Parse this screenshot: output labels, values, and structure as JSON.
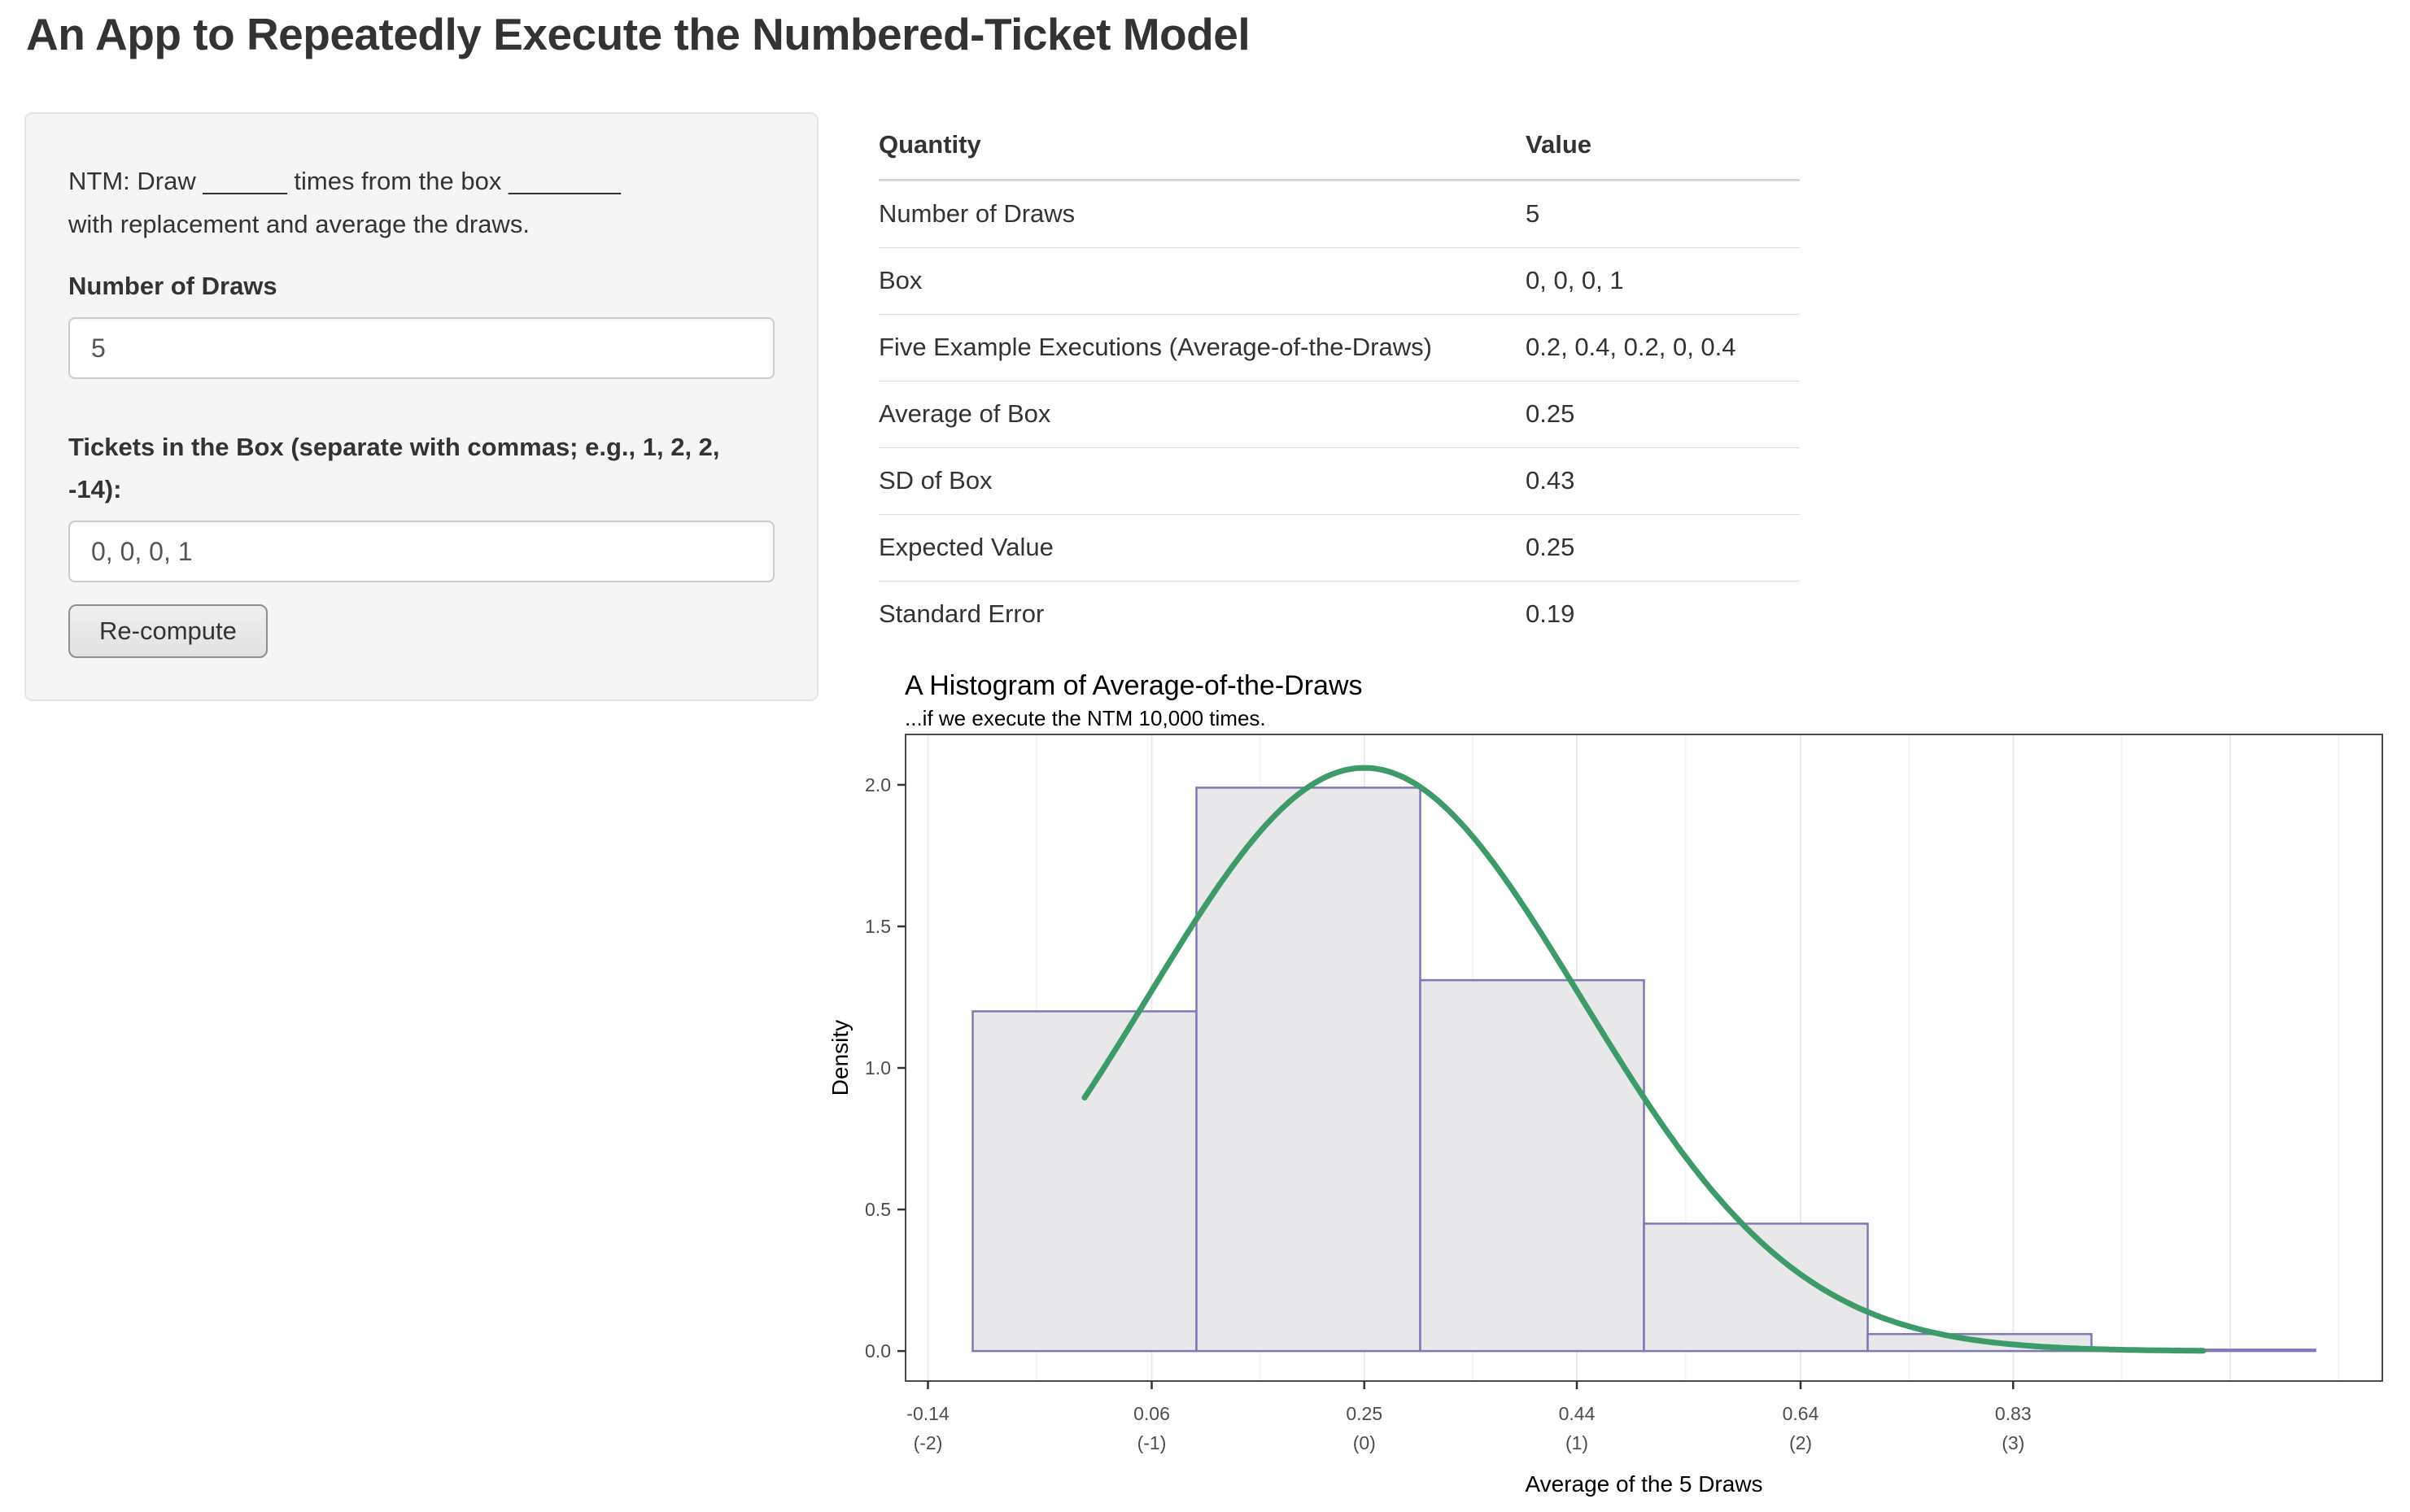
{
  "page": {
    "title": "An App to Repeatedly Execute the Numbered-Ticket Model"
  },
  "sidebar": {
    "ntm_line1": "NTM: Draw ______ times from the box ________",
    "ntm_line2": "with replacement and average the draws.",
    "draws_label": "Number of Draws",
    "draws_value": "5",
    "tickets_label": "Tickets in the Box (separate with commas; e.g., 1, 2, 2, -14):",
    "tickets_value": "0, 0, 0, 1",
    "recompute_label": "Re-compute"
  },
  "summary_table": {
    "headers": [
      "Quantity",
      "Value"
    ],
    "rows": [
      [
        "Number of Draws",
        "5"
      ],
      [
        "Box",
        "0, 0, 0, 1"
      ],
      [
        "Five Example Executions (Average-of-the-Draws)",
        "0.2, 0.4, 0.2, 0, 0.4"
      ],
      [
        "Average of Box",
        "0.25"
      ],
      [
        "SD of Box",
        "0.43"
      ],
      [
        "Expected Value",
        "0.25"
      ],
      [
        "Standard Error",
        "0.19"
      ]
    ]
  },
  "chart_data": {
    "type": "histogram-with-normal-curve",
    "title": "A Histogram of Average-of-the-Draws",
    "subtitle": "...if we execute the NTM 10,000 times.",
    "xlabel": "Average of the 5 Draws",
    "ylabel": "Density",
    "xlim": [
      -0.16,
      1.16
    ],
    "ylim": [
      -0.106,
      2.178
    ],
    "grid": "vertical-only",
    "legend": "none",
    "x_ticks": [
      {
        "value": -0.14,
        "label": "-0.14",
        "sub": "(-2)"
      },
      {
        "value": 0.06,
        "label": "0.06",
        "sub": "(-1)"
      },
      {
        "value": 0.25,
        "label": "0.25",
        "sub": "(0)"
      },
      {
        "value": 0.44,
        "label": "0.44",
        "sub": "(1)"
      },
      {
        "value": 0.64,
        "label": "0.64",
        "sub": "(2)"
      },
      {
        "value": 0.83,
        "label": "0.83",
        "sub": "(3)"
      }
    ],
    "y_ticks": [
      {
        "value": 0,
        "label": "0.0"
      },
      {
        "value": 0.5,
        "label": "0.5"
      },
      {
        "value": 1,
        "label": "1.0"
      },
      {
        "value": 1.5,
        "label": "1.5"
      },
      {
        "value": 2,
        "label": "2.0"
      }
    ],
    "bars": [
      {
        "from": -0.1,
        "to": 0.1,
        "density": 1.2
      },
      {
        "from": 0.1,
        "to": 0.3,
        "density": 1.99
      },
      {
        "from": 0.3,
        "to": 0.5,
        "density": 1.31
      },
      {
        "from": 0.5,
        "to": 0.7,
        "density": 0.45
      },
      {
        "from": 0.7,
        "to": 0.9,
        "density": 0.06
      },
      {
        "from": 0.9,
        "to": 1.1,
        "density": 0.005
      }
    ],
    "normal_curve": {
      "mean": 0.25,
      "sd": 0.1936,
      "peak_density": 2.06,
      "x_from": 0,
      "x_to": 1
    },
    "colors": {
      "bar_fill": "#E8E7EA",
      "bar_stroke": "#7D78B6",
      "curve": "#3D9B69",
      "grid_major": "#E9E9E9",
      "grid_minor": "#F4F4F4",
      "panel_border": "#4A4A4A",
      "tick_label": "#4D4D4D",
      "text": "#000000"
    }
  }
}
